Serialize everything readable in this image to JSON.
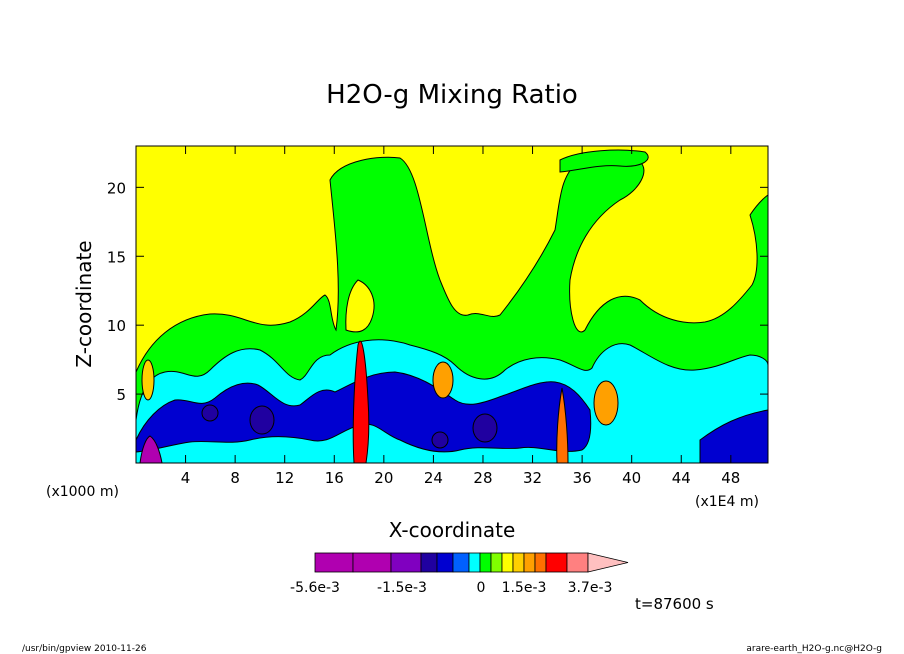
{
  "chart_data": {
    "type": "heatmap",
    "title": "H2O-g Mixing Ratio",
    "xlabel": "X-coordinate",
    "ylabel": "Z-coordinate",
    "x_units_left": "(x1000 m)",
    "x_units_right": "(x1E4 m)",
    "xlim": [
      0,
      51
    ],
    "ylim": [
      0,
      23
    ],
    "x_ticks": [
      4,
      8,
      12,
      16,
      20,
      24,
      28,
      32,
      36,
      40,
      44,
      48
    ],
    "x_tick_labels": [
      "4",
      "8",
      "12",
      "16",
      "20",
      "24",
      "28",
      "32",
      "36",
      "40",
      "44",
      "48"
    ],
    "y_ticks": [
      5,
      10,
      15,
      20
    ],
    "y_tick_labels": [
      "5",
      "10",
      "15",
      "20"
    ],
    "time_label": "t=87600 s",
    "colorbar": {
      "colors": [
        "#b000b0",
        "#b000b0",
        "#8000c0",
        "#2000a0",
        "#0000d0",
        "#0060ff",
        "#00ffff",
        "#00ff00",
        "#80ff00",
        "#ffff00",
        "#ffd000",
        "#ffa000",
        "#ff7000",
        "#ff0000",
        "#ff8080",
        "#ffc0c0"
      ],
      "labels": [
        "-5.6e-3",
        "-1.5e-3",
        "0",
        "1.5e-3",
        "3.7e-3"
      ],
      "label_segments": [
        0,
        4,
        7,
        9,
        12
      ]
    },
    "field_levels": {
      "yellow": 7,
      "green": 6,
      "cyan": 5,
      "blue": 4,
      "darkblue": 3,
      "purple": 2,
      "orange": 8,
      "red": 9
    }
  },
  "footer": {
    "left": "/usr/bin/gpview   2010-11-26",
    "right": "arare-earth_H2O-g.nc@H2O-g"
  }
}
